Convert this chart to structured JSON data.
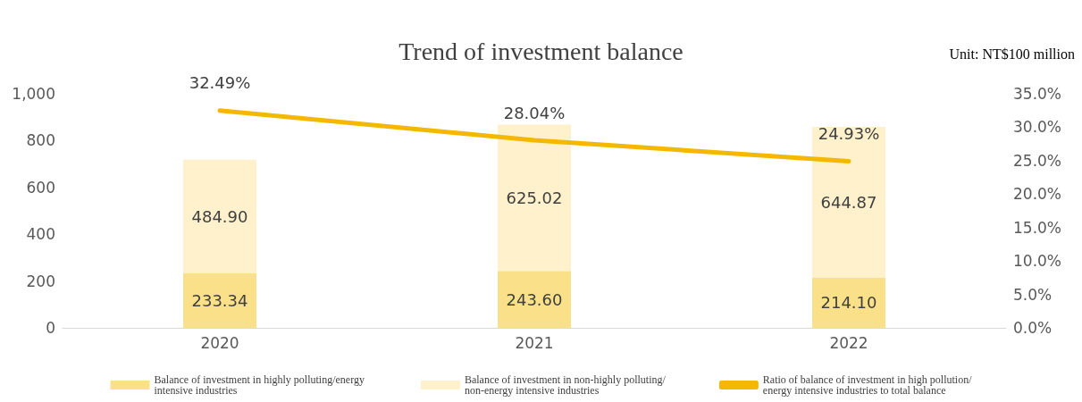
{
  "chart_data": {
    "type": "bar",
    "title": "Trend of investment balance",
    "annotations": [
      "Unit: NT$100 million"
    ],
    "categories": [
      "2020",
      "2021",
      "2022"
    ],
    "stacked": true,
    "series": [
      {
        "name": "Balance of investment in highly polluting/energy intensive industries",
        "color": "#fbe08a",
        "values": [
          233.34,
          243.6,
          214.1
        ],
        "value_labels": [
          "233.34",
          "243.60",
          "214.10"
        ]
      },
      {
        "name": "Balance of investment in non-highly polluting/non-energy intensive industries",
        "color": "#fef1cc",
        "values": [
          484.9,
          625.02,
          644.87
        ],
        "value_labels": [
          "484.90",
          "625.02",
          "644.87"
        ]
      },
      {
        "name": "Ratio of balance of investment in high pollution/energy intensive industries to total balance",
        "type": "line",
        "axis": "y2",
        "color": "#f5b800",
        "values": [
          32.49,
          28.04,
          24.93
        ],
        "value_labels": [
          "32.49%",
          "28.04%",
          "24.93%"
        ]
      }
    ],
    "ylim": [
      0,
      1000
    ],
    "yticks": [
      0,
      200,
      400,
      600,
      800,
      {
        "value": 1000,
        "label": "1,000"
      }
    ],
    "y2lim": [
      0,
      35
    ],
    "y2ticks": [
      {
        "value": 0,
        "label": "0.0%"
      },
      {
        "value": 5,
        "label": "5.0%"
      },
      {
        "value": 10,
        "label": "10.0%"
      },
      {
        "value": 15,
        "label": "15.0%"
      },
      {
        "value": 20,
        "label": "20.0%"
      },
      {
        "value": 25,
        "label": "25.0%"
      },
      {
        "value": 30,
        "label": "30.0%"
      },
      {
        "value": 35,
        "label": "35.0%"
      }
    ],
    "grid": false,
    "legend": "bottom",
    "marker": "none",
    "line_style": "solid"
  }
}
